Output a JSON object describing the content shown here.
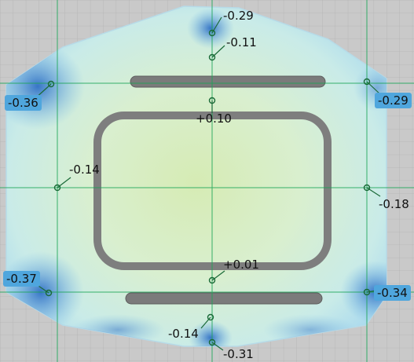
{
  "colors": {
    "background": "#c9c9c9",
    "grid_minor": "#b6b6b6",
    "grid_major": "#14a052",
    "surface_light": "#dff3ea",
    "surface_center": "#d8ecb8",
    "edge_deviation": "#3a78c8",
    "slot": "#7a7a7a",
    "label_highlight": "#4fa6dd"
  },
  "measurements": [
    {
      "id": "top-edge",
      "value": "-0.29",
      "highlighted": false
    },
    {
      "id": "top-inner",
      "value": "-0.11",
      "highlighted": false
    },
    {
      "id": "upper-left-corner",
      "value": "-0.36",
      "highlighted": true
    },
    {
      "id": "upper-right-corner",
      "value": "-0.29",
      "highlighted": true
    },
    {
      "id": "center-top",
      "value": "+0.10",
      "highlighted": false
    },
    {
      "id": "left-middle",
      "value": "-0.14",
      "highlighted": false
    },
    {
      "id": "right-middle",
      "value": "-0.18",
      "highlighted": false
    },
    {
      "id": "center-bottom",
      "value": "+0.01",
      "highlighted": false
    },
    {
      "id": "lower-left-corner",
      "value": "-0.37",
      "highlighted": true
    },
    {
      "id": "lower-right-corner",
      "value": "-0.34",
      "highlighted": true
    },
    {
      "id": "bottom-inner",
      "value": "-0.14",
      "highlighted": false
    },
    {
      "id": "bottom-edge",
      "value": "-0.31",
      "highlighted": false
    }
  ]
}
